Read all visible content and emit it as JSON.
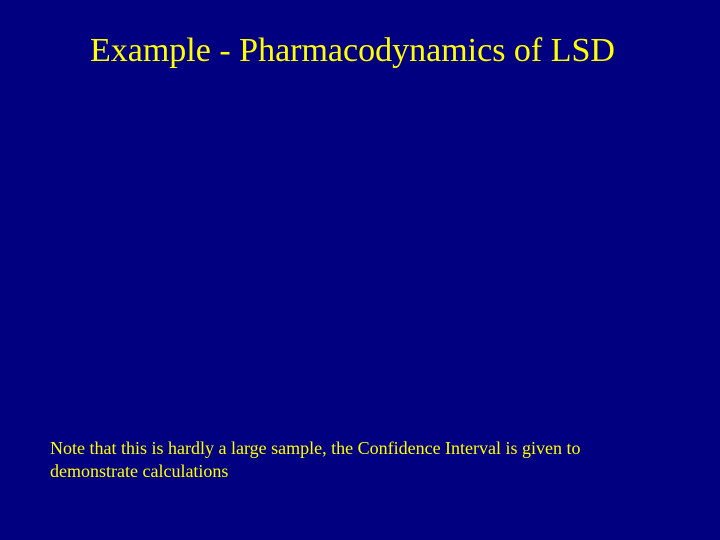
{
  "slide": {
    "title": "Example - Pharmacodynamics of LSD",
    "footnote": "Note that this is hardly a large sample, the Confidence Interval is given to demonstrate calculations"
  },
  "styling": {
    "background_color": "#000080",
    "title_color": "#ffff00",
    "footnote_color": "#ffff00",
    "title_fontsize": 34,
    "footnote_fontsize": 18,
    "font_family": "Times New Roman"
  }
}
